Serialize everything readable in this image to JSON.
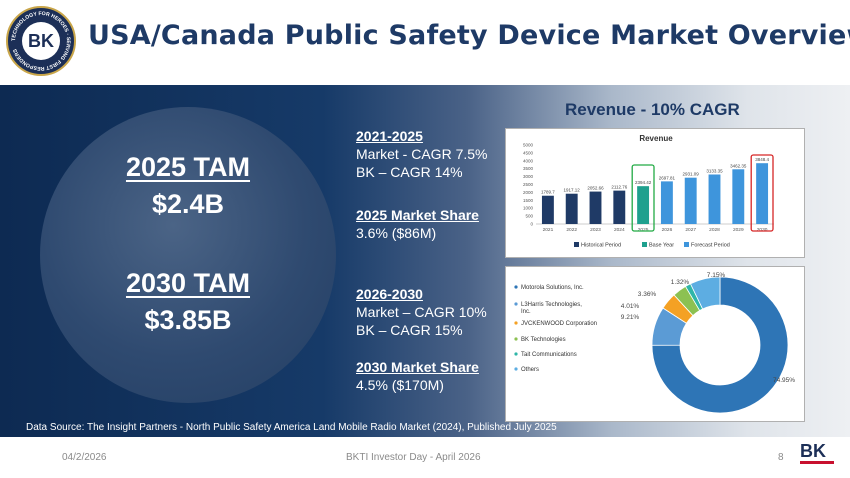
{
  "header": {
    "title": "USA/Canada Public Safety Device Market Overview",
    "logo": {
      "letters": "BK",
      "ring_text": "TECHNOLOGY FOR HEROES · SERVING FIRST RESPONDERS"
    }
  },
  "left": {
    "tam2025_label": "2025 TAM",
    "tam2025_value": "$2.4B",
    "tam2030_label": "2030 TAM",
    "tam2030_value": "$3.85B"
  },
  "middle": {
    "p1_heading": "2021-2025",
    "p1_line1": "Market - CAGR 7.5%",
    "p1_line2": "BK – CAGR 14%",
    "share1_heading": "2025 Market Share",
    "share1_value": "3.6% ($86M)",
    "p2_heading": "2026-2030",
    "p2_line1": "Market – CAGR 10%",
    "p2_line2": "BK – CAGR 15%",
    "share2_heading": "2030 Market Share",
    "share2_value": "4.5% ($170M)"
  },
  "source": "Data Source: The Insight Partners - North Public Safety America Land Mobile Radio Market (2024), Published July 2025",
  "revenue_heading": "Revenue - 10% CAGR",
  "footer": {
    "date": "04/2/2026",
    "event": "BKTI Investor Day - April 2026",
    "page": "8",
    "logo_letters": "BK"
  },
  "colors": {
    "navy": "#1e3a66",
    "historical": "#1f3a66",
    "base": "#1fa08e",
    "forecast": "#3e95dc",
    "highlight_green": "#22aa44",
    "highlight_red": "#d62626"
  },
  "chart_data": [
    {
      "type": "bar",
      "title": "Revenue",
      "categories": [
        "2021",
        "2022",
        "2023",
        "2024",
        "2025",
        "2026",
        "2027",
        "2028",
        "2029",
        "2030"
      ],
      "values": [
        1789.7,
        1917.12,
        2052.66,
        2112.76,
        2394.42,
        2697.81,
        2931.09,
        3133.35,
        3462.35,
        3848.4
      ],
      "value_labels": [
        "1789.7",
        "1917.12",
        "2052.66",
        "2112.76",
        "2394.42",
        "2697.81",
        "2931.09",
        "3133.35",
        "3462.35",
        "3848.4"
      ],
      "period": [
        "historical",
        "historical",
        "historical",
        "historical",
        "base",
        "forecast",
        "forecast",
        "forecast",
        "forecast",
        "forecast"
      ],
      "ylim": [
        0,
        5000
      ],
      "yticks": [
        "0",
        "500",
        "1000",
        "1500",
        "2000",
        "2500",
        "3000",
        "3500",
        "4000",
        "4500",
        "5000"
      ],
      "legend": [
        "Historical Period",
        "Base Year",
        "Forecast Period"
      ],
      "highlight": {
        "base_year_box": "2025",
        "end_year_box": "2030"
      }
    },
    {
      "type": "pie",
      "donut": true,
      "labels": [
        "Motorola Solutions, Inc.",
        "L3Harris Technologies, Inc.",
        "JVCKENWOOD Corporation",
        "BK Technologies",
        "Tait Communications",
        "Others"
      ],
      "values": [
        74.95,
        9.21,
        4.01,
        3.36,
        1.32,
        7.15
      ],
      "value_labels": [
        "74.95%",
        "9.21%",
        "4.01%",
        "3.36%",
        "1.32%",
        "7.15%"
      ],
      "colors": [
        "#2e75b6",
        "#5b9bd5",
        "#f4a124",
        "#8cc152",
        "#2fb6a8",
        "#5dade2"
      ]
    }
  ]
}
